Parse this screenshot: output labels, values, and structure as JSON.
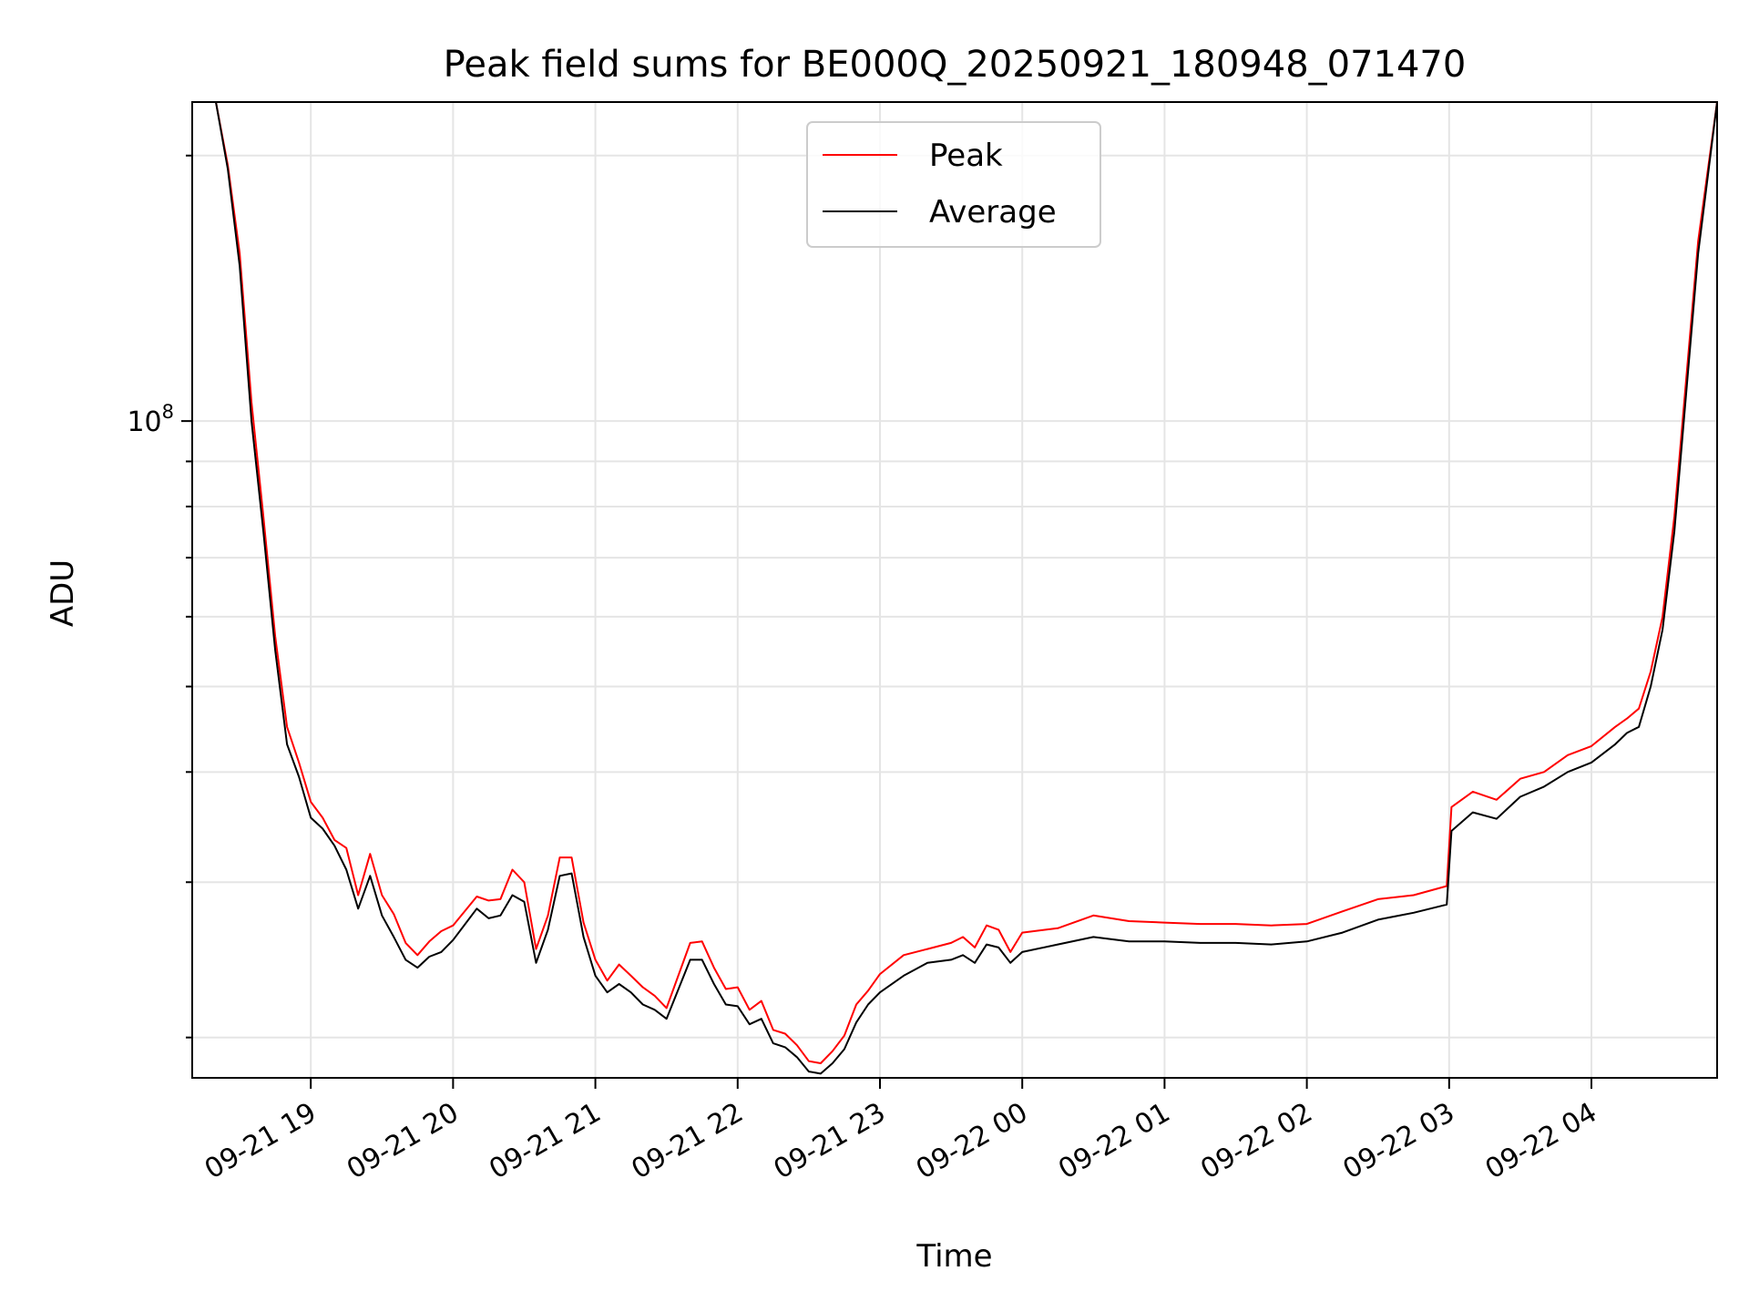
{
  "chart_data": {
    "type": "line",
    "title": "Peak field sums for BE000Q_20250921_180948_071470",
    "xlabel": "Time",
    "ylabel": "ADU",
    "yscale": "log",
    "ylim": [
      18000000,
      230000000
    ],
    "xlim": [
      "2025-09-21T18:10",
      "2025-09-22T04:53"
    ],
    "grid": true,
    "legend_position": "top-center",
    "x_ticks": [
      {
        "label": "09-21 19",
        "time": "2025-09-21T19:00"
      },
      {
        "label": "09-21 20",
        "time": "2025-09-21T20:00"
      },
      {
        "label": "09-21 21",
        "time": "2025-09-21T21:00"
      },
      {
        "label": "09-21 22",
        "time": "2025-09-21T22:00"
      },
      {
        "label": "09-21 23",
        "time": "2025-09-21T23:00"
      },
      {
        "label": "09-22 00",
        "time": "2025-09-22T00:00"
      },
      {
        "label": "09-22 01",
        "time": "2025-09-22T01:00"
      },
      {
        "label": "09-22 02",
        "time": "2025-09-22T02:00"
      },
      {
        "label": "09-22 03",
        "time": "2025-09-22T03:00"
      },
      {
        "label": "09-22 04",
        "time": "2025-09-22T04:00"
      }
    ],
    "y_ticks": [
      {
        "base": "10",
        "exp": "8",
        "value": 100000000
      }
    ],
    "x": [
      "2025-09-21T18:10",
      "2025-09-21T18:20",
      "2025-09-21T18:25",
      "2025-09-21T18:30",
      "2025-09-21T18:35",
      "2025-09-21T18:40",
      "2025-09-21T18:45",
      "2025-09-21T18:50",
      "2025-09-21T18:55",
      "2025-09-21T19:00",
      "2025-09-21T19:05",
      "2025-09-21T19:10",
      "2025-09-21T19:15",
      "2025-09-21T19:20",
      "2025-09-21T19:25",
      "2025-09-21T19:30",
      "2025-09-21T19:35",
      "2025-09-21T19:40",
      "2025-09-21T19:45",
      "2025-09-21T19:50",
      "2025-09-21T19:55",
      "2025-09-21T20:00",
      "2025-09-21T20:10",
      "2025-09-21T20:15",
      "2025-09-21T20:20",
      "2025-09-21T20:25",
      "2025-09-21T20:30",
      "2025-09-21T20:35",
      "2025-09-21T20:40",
      "2025-09-21T20:45",
      "2025-09-21T20:50",
      "2025-09-21T20:55",
      "2025-09-21T21:00",
      "2025-09-21T21:05",
      "2025-09-21T21:10",
      "2025-09-21T21:15",
      "2025-09-21T21:20",
      "2025-09-21T21:25",
      "2025-09-21T21:30",
      "2025-09-21T21:40",
      "2025-09-21T21:45",
      "2025-09-21T21:50",
      "2025-09-21T21:55",
      "2025-09-21T22:00",
      "2025-09-21T22:05",
      "2025-09-21T22:10",
      "2025-09-21T22:15",
      "2025-09-21T22:20",
      "2025-09-21T22:25",
      "2025-09-21T22:30",
      "2025-09-21T22:35",
      "2025-09-21T22:40",
      "2025-09-21T22:45",
      "2025-09-21T22:50",
      "2025-09-21T22:55",
      "2025-09-21T23:00",
      "2025-09-21T23:10",
      "2025-09-21T23:20",
      "2025-09-21T23:30",
      "2025-09-21T23:35",
      "2025-09-21T23:40",
      "2025-09-21T23:45",
      "2025-09-21T23:50",
      "2025-09-21T23:55",
      "2025-09-22T00:00",
      "2025-09-22T00:15",
      "2025-09-22T00:30",
      "2025-09-22T00:45",
      "2025-09-22T01:00",
      "2025-09-22T01:15",
      "2025-09-22T01:30",
      "2025-09-22T01:45",
      "2025-09-22T02:00",
      "2025-09-22T02:15",
      "2025-09-22T02:30",
      "2025-09-22T02:45",
      "2025-09-22T02:59",
      "2025-09-22T03:01",
      "2025-09-22T03:10",
      "2025-09-22T03:20",
      "2025-09-22T03:30",
      "2025-09-22T03:40",
      "2025-09-22T03:50",
      "2025-09-22T04:00",
      "2025-09-22T04:10",
      "2025-09-22T04:15",
      "2025-09-22T04:20",
      "2025-09-22T04:25",
      "2025-09-22T04:30",
      "2025-09-22T04:35",
      "2025-09-22T04:40",
      "2025-09-22T04:45",
      "2025-09-22T04:53"
    ],
    "series": [
      {
        "name": "Peak",
        "color": "#ff0000",
        "values": [
          230000000,
          230000000,
          195000000,
          155000000,
          105000000,
          78000000,
          57000000,
          45000000,
          41000000,
          37000000,
          35500000,
          33500000,
          32800000,
          29000000,
          32300000,
          29000000,
          27600000,
          25600000,
          24800000,
          25700000,
          26400000,
          26800000,
          28900000,
          28600000,
          28700000,
          31000000,
          30000000,
          25200000,
          27500000,
          32000000,
          32000000,
          27000000,
          24500000,
          23200000,
          24200000,
          23500000,
          22800000,
          22300000,
          21600000,
          25600000,
          25700000,
          24000000,
          22700000,
          22800000,
          21500000,
          22000000,
          20400000,
          20200000,
          19600000,
          18800000,
          18700000,
          19300000,
          20100000,
          21800000,
          22600000,
          23600000,
          24800000,
          25200000,
          25600000,
          26000000,
          25300000,
          26800000,
          26500000,
          25000000,
          26300000,
          26600000,
          27500000,
          27100000,
          27000000,
          26900000,
          26900000,
          26800000,
          26900000,
          27800000,
          28700000,
          29000000,
          29700000,
          36500000,
          38000000,
          37200000,
          39300000,
          40000000,
          41800000,
          42800000,
          45000000,
          46000000,
          47200000,
          52000000,
          60000000,
          78000000,
          112000000,
          160000000,
          230000000
        ]
      },
      {
        "name": "Average",
        "color": "#000000",
        "values": [
          230000000,
          230000000,
          193000000,
          150000000,
          100000000,
          75000000,
          55000000,
          43000000,
          39500000,
          35500000,
          34500000,
          33000000,
          31000000,
          28000000,
          30500000,
          27500000,
          26000000,
          24500000,
          24000000,
          24700000,
          25000000,
          25800000,
          28000000,
          27300000,
          27500000,
          29000000,
          28500000,
          24300000,
          26500000,
          30500000,
          30700000,
          26000000,
          23500000,
          22500000,
          23000000,
          22500000,
          21800000,
          21500000,
          21000000,
          24500000,
          24500000,
          23000000,
          21800000,
          21700000,
          20700000,
          21000000,
          19700000,
          19500000,
          19000000,
          18300000,
          18200000,
          18700000,
          19400000,
          20800000,
          21800000,
          22500000,
          23500000,
          24300000,
          24500000,
          24800000,
          24300000,
          25500000,
          25300000,
          24300000,
          25000000,
          25500000,
          26000000,
          25700000,
          25700000,
          25600000,
          25600000,
          25500000,
          25700000,
          26300000,
          27200000,
          27700000,
          28300000,
          34300000,
          36000000,
          35400000,
          37500000,
          38500000,
          40000000,
          41000000,
          43000000,
          44300000,
          45000000,
          50000000,
          58000000,
          75000000,
          108000000,
          155000000,
          230000000
        ]
      }
    ]
  }
}
